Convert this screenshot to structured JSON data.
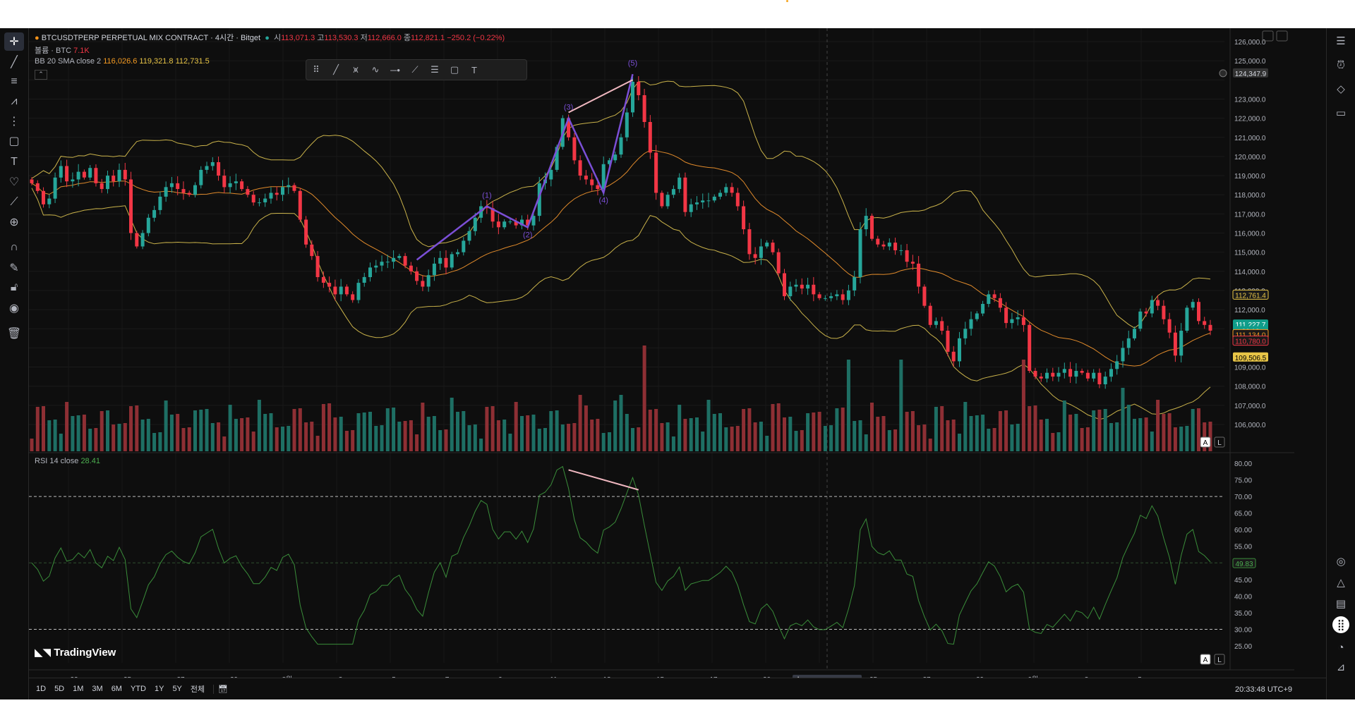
{
  "header": {
    "symbol": "BTCUSDTPERP PERPETUAL MIX CONTRACT · 4시간 · Bitget",
    "o_label": "시",
    "o_value": "113,071.3",
    "h_label": "고",
    "h_value": "113,530.3",
    "l_label": "저",
    "l_value": "112,666.0",
    "c_label": "종",
    "c_value": "112,821.1",
    "change": "−250.2 (−0.22%)"
  },
  "volume_legend": {
    "label": "볼륨 · BTC",
    "value": "7.1K"
  },
  "bb_legend": {
    "label": "BB 20 SMA close 2",
    "basis": "116,026.6",
    "upper": "119,321.8",
    "lower": "112,731.5"
  },
  "rsi_legend": {
    "label": "RSI 14 close",
    "value": "28.41"
  },
  "drawing_toolbar": [
    "grip-icon",
    "trend-line-icon",
    "pattern-icon",
    "wave-icon",
    "horizontal-ray-icon",
    "path-icon",
    "parallel-channel-icon",
    "rectangle-icon",
    "text-icon"
  ],
  "left_toolbar": [
    "crosshair-icon",
    "trend-line-icon",
    "fib-icon",
    "pattern-icon",
    "measure-icon",
    "rectangle-icon",
    "text-icon",
    "heart-icon",
    "ruler-icon",
    "zoom-icon",
    "magnet-icon",
    "pencil-lock-icon",
    "lock-icon",
    "eye-icon",
    "trash-icon"
  ],
  "right_toolbar": [
    "watchlist-icon",
    "alerts-icon",
    "layers-icon",
    "chat-icon",
    "target-icon",
    "ideas-icon",
    "calendar-icon",
    "grid-icon",
    "rss-icon",
    "bell-icon"
  ],
  "price_axis_labels": [
    "126,000.0",
    "125,000.0",
    "124,347.9",
    "123,000.0",
    "122,000.0",
    "121,000.0",
    "120,000.0",
    "119,000.0",
    "118,000.0",
    "117,000.0",
    "116,000.0",
    "115,000.0",
    "114,000.0",
    "113,000.0",
    "112,761.4",
    "112,000.0",
    "111,227.7",
    "26:12",
    "111,134.0",
    "110,780.0",
    "109,506.5",
    "109,000.0",
    "108,000.0",
    "107,000.0",
    "106,000.0"
  ],
  "rsi_axis_labels": [
    "80.00",
    "75.00",
    "70.00",
    "65.00",
    "60.00",
    "55.00",
    "49.83",
    "45.00",
    "40.00",
    "35.00",
    "30.00",
    "25.00"
  ],
  "time_axis_labels": [
    "23",
    "25",
    "27",
    "29",
    "8월",
    "3",
    "5",
    "7",
    "9",
    "11",
    "13",
    "15",
    "17",
    "20",
    "23",
    "25",
    "27",
    "29",
    "9월",
    "3",
    "5"
  ],
  "crosshair_time": "수 2025-08-20  05:00",
  "wave_labels": [
    "(1)",
    "(2)",
    "(3)",
    "(4)",
    "(5)"
  ],
  "bottom_ranges": [
    "1D",
    "5D",
    "1M",
    "3M",
    "6M",
    "YTD",
    "1Y",
    "5Y",
    "전체"
  ],
  "clock": "20:33:48 UTC+9",
  "brand": "TradingView",
  "mode_buttons": {
    "a": "A",
    "l": "L"
  },
  "chart_data": {
    "type": "candlestick",
    "ylim": [
      105500,
      126500
    ],
    "rsi": {
      "ylim": [
        24,
        81
      ],
      "levels": [
        70,
        30
      ],
      "mid": 50,
      "last": 28.41
    },
    "closes": [
      118600,
      118200,
      117500,
      117800,
      118900,
      119500,
      118700,
      118800,
      119200,
      118900,
      119400,
      118600,
      118300,
      119000,
      118700,
      119300,
      118800,
      116000,
      115300,
      116000,
      116800,
      117200,
      117900,
      118400,
      118600,
      118300,
      118100,
      118000,
      118500,
      119300,
      119500,
      119700,
      119000,
      118400,
      118600,
      118700,
      118300,
      118000,
      117600,
      117600,
      117800,
      118100,
      118000,
      118400,
      118500,
      118200,
      116700,
      115400,
      114800,
      113700,
      113400,
      113200,
      112800,
      113200,
      112800,
      112500,
      113400,
      113700,
      114200,
      114300,
      114500,
      114500,
      114700,
      114800,
      114300,
      114000,
      113500,
      113200,
      113800,
      114400,
      114700,
      114200,
      114900,
      115000,
      115600,
      116100,
      116800,
      117400,
      117300,
      116600,
      116300,
      116600,
      116600,
      116400,
      116700,
      116400,
      116900,
      118600,
      118800,
      119300,
      120500,
      122000,
      121000,
      119800,
      119000,
      118800,
      118500,
      118300,
      119600,
      119800,
      120100,
      121000,
      122300,
      123900,
      123200,
      121800,
      120200,
      118100,
      117400,
      118000,
      118300,
      118900,
      117100,
      117500,
      117600,
      117700,
      117700,
      117900,
      118100,
      118400,
      118100,
      117400,
      116200,
      114900,
      114700,
      115300,
      115500,
      115000,
      113900,
      112700,
      113200,
      113300,
      113100,
      113300,
      112800,
      112600,
      112600,
      112700,
      112800,
      112500,
      113000,
      113700,
      116200,
      116900,
      115700,
      115400,
      115300,
      115500,
      115100,
      115100,
      114500,
      114400,
      113200,
      112200,
      111200,
      111400,
      110900,
      109800,
      109300,
      110500,
      111000,
      111500,
      111800,
      112300,
      112800,
      112600,
      112100,
      111300,
      111500,
      111600,
      111200,
      108800,
      108500,
      108400,
      108700,
      108500,
      108700,
      108900,
      108500,
      108800,
      108700,
      108400,
      108700,
      108100,
      108500,
      108900,
      109300,
      110000,
      110500,
      111000,
      111900,
      111800,
      112500,
      112200,
      111500,
      110800,
      109600,
      110900,
      112100,
      112400,
      111400,
      111200,
      110900
    ]
  }
}
